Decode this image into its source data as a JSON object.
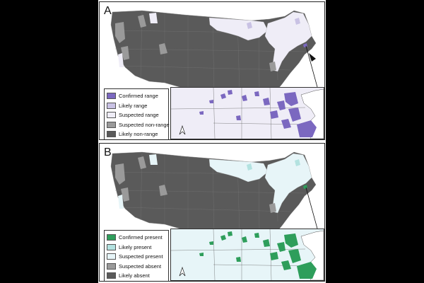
{
  "panels": [
    {
      "letter": "A",
      "legend": [
        {
          "label": "Confirmed range",
          "color": "#7b68c0"
        },
        {
          "label": "Likely range",
          "color": "#c9c2e4"
        },
        {
          "label": "Suspected range",
          "color": "#efedf7"
        },
        {
          "label": "Suspected non-range",
          "color": "#9a9a9a"
        },
        {
          "label": "Likely non-range",
          "color": "#5a5a5a"
        }
      ]
    },
    {
      "letter": "B",
      "legend": [
        {
          "label": "Confirmed present",
          "color": "#2e9e5b"
        },
        {
          "label": "Likely present",
          "color": "#b3e2e0"
        },
        {
          "label": "Suspected present",
          "color": "#e7f5f8"
        },
        {
          "label": "Suspected absent",
          "color": "#9a9a9a"
        },
        {
          "label": "Likely absent",
          "color": "#5a5a5a"
        }
      ]
    }
  ],
  "icons": {
    "north_arrow": "north-arrow-icon",
    "pointer": "triangle-pointer-icon"
  }
}
